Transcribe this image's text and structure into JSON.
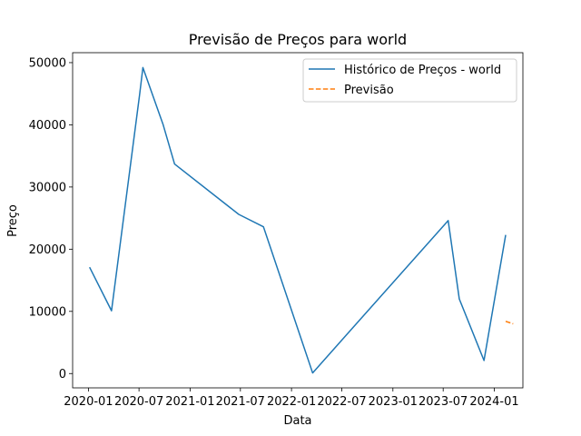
{
  "chart_data": {
    "type": "line",
    "title": "Previsão de Preços para world",
    "xlabel": "Data",
    "ylabel": "Preço",
    "grid": false,
    "legend_position": "top-right",
    "xlim": [
      "2019-11-05",
      "2024-04-13"
    ],
    "ylim": [
      -2300,
      51600
    ],
    "x_ticks": [
      "2020-01",
      "2020-07",
      "2021-01",
      "2021-07",
      "2022-01",
      "2022-07",
      "2023-01",
      "2023-07",
      "2024-01"
    ],
    "y_ticks": [
      0,
      10000,
      20000,
      30000,
      40000,
      50000
    ],
    "y_tick_labels": [
      "0",
      "10000",
      "20000",
      "30000",
      "40000",
      "50000"
    ],
    "series": [
      {
        "name": "Histórico de Preços - world",
        "color": "#1f77b4",
        "style": "solid",
        "points": [
          {
            "x": "2020-01-05",
            "y": 17100
          },
          {
            "x": "2020-03-24",
            "y": 10100
          },
          {
            "x": "2020-07-03",
            "y": 44800
          },
          {
            "x": "2020-07-15",
            "y": 49200
          },
          {
            "x": "2020-09-26",
            "y": 40000
          },
          {
            "x": "2020-11-06",
            "y": 33700
          },
          {
            "x": "2021-06-25",
            "y": 25600
          },
          {
            "x": "2021-09-22",
            "y": 23600
          },
          {
            "x": "2022-03-18",
            "y": 100
          },
          {
            "x": "2023-07-19",
            "y": 24600
          },
          {
            "x": "2023-08-28",
            "y": 12000
          },
          {
            "x": "2023-11-25",
            "y": 2100
          },
          {
            "x": "2024-02-11",
            "y": 22300
          }
        ]
      },
      {
        "name": "Previsão",
        "color": "#ff7f0e",
        "style": "dashed",
        "points": [
          {
            "x": "2024-02-11",
            "y": 8400
          },
          {
            "x": "2024-03-09",
            "y": 8000
          }
        ]
      }
    ]
  }
}
